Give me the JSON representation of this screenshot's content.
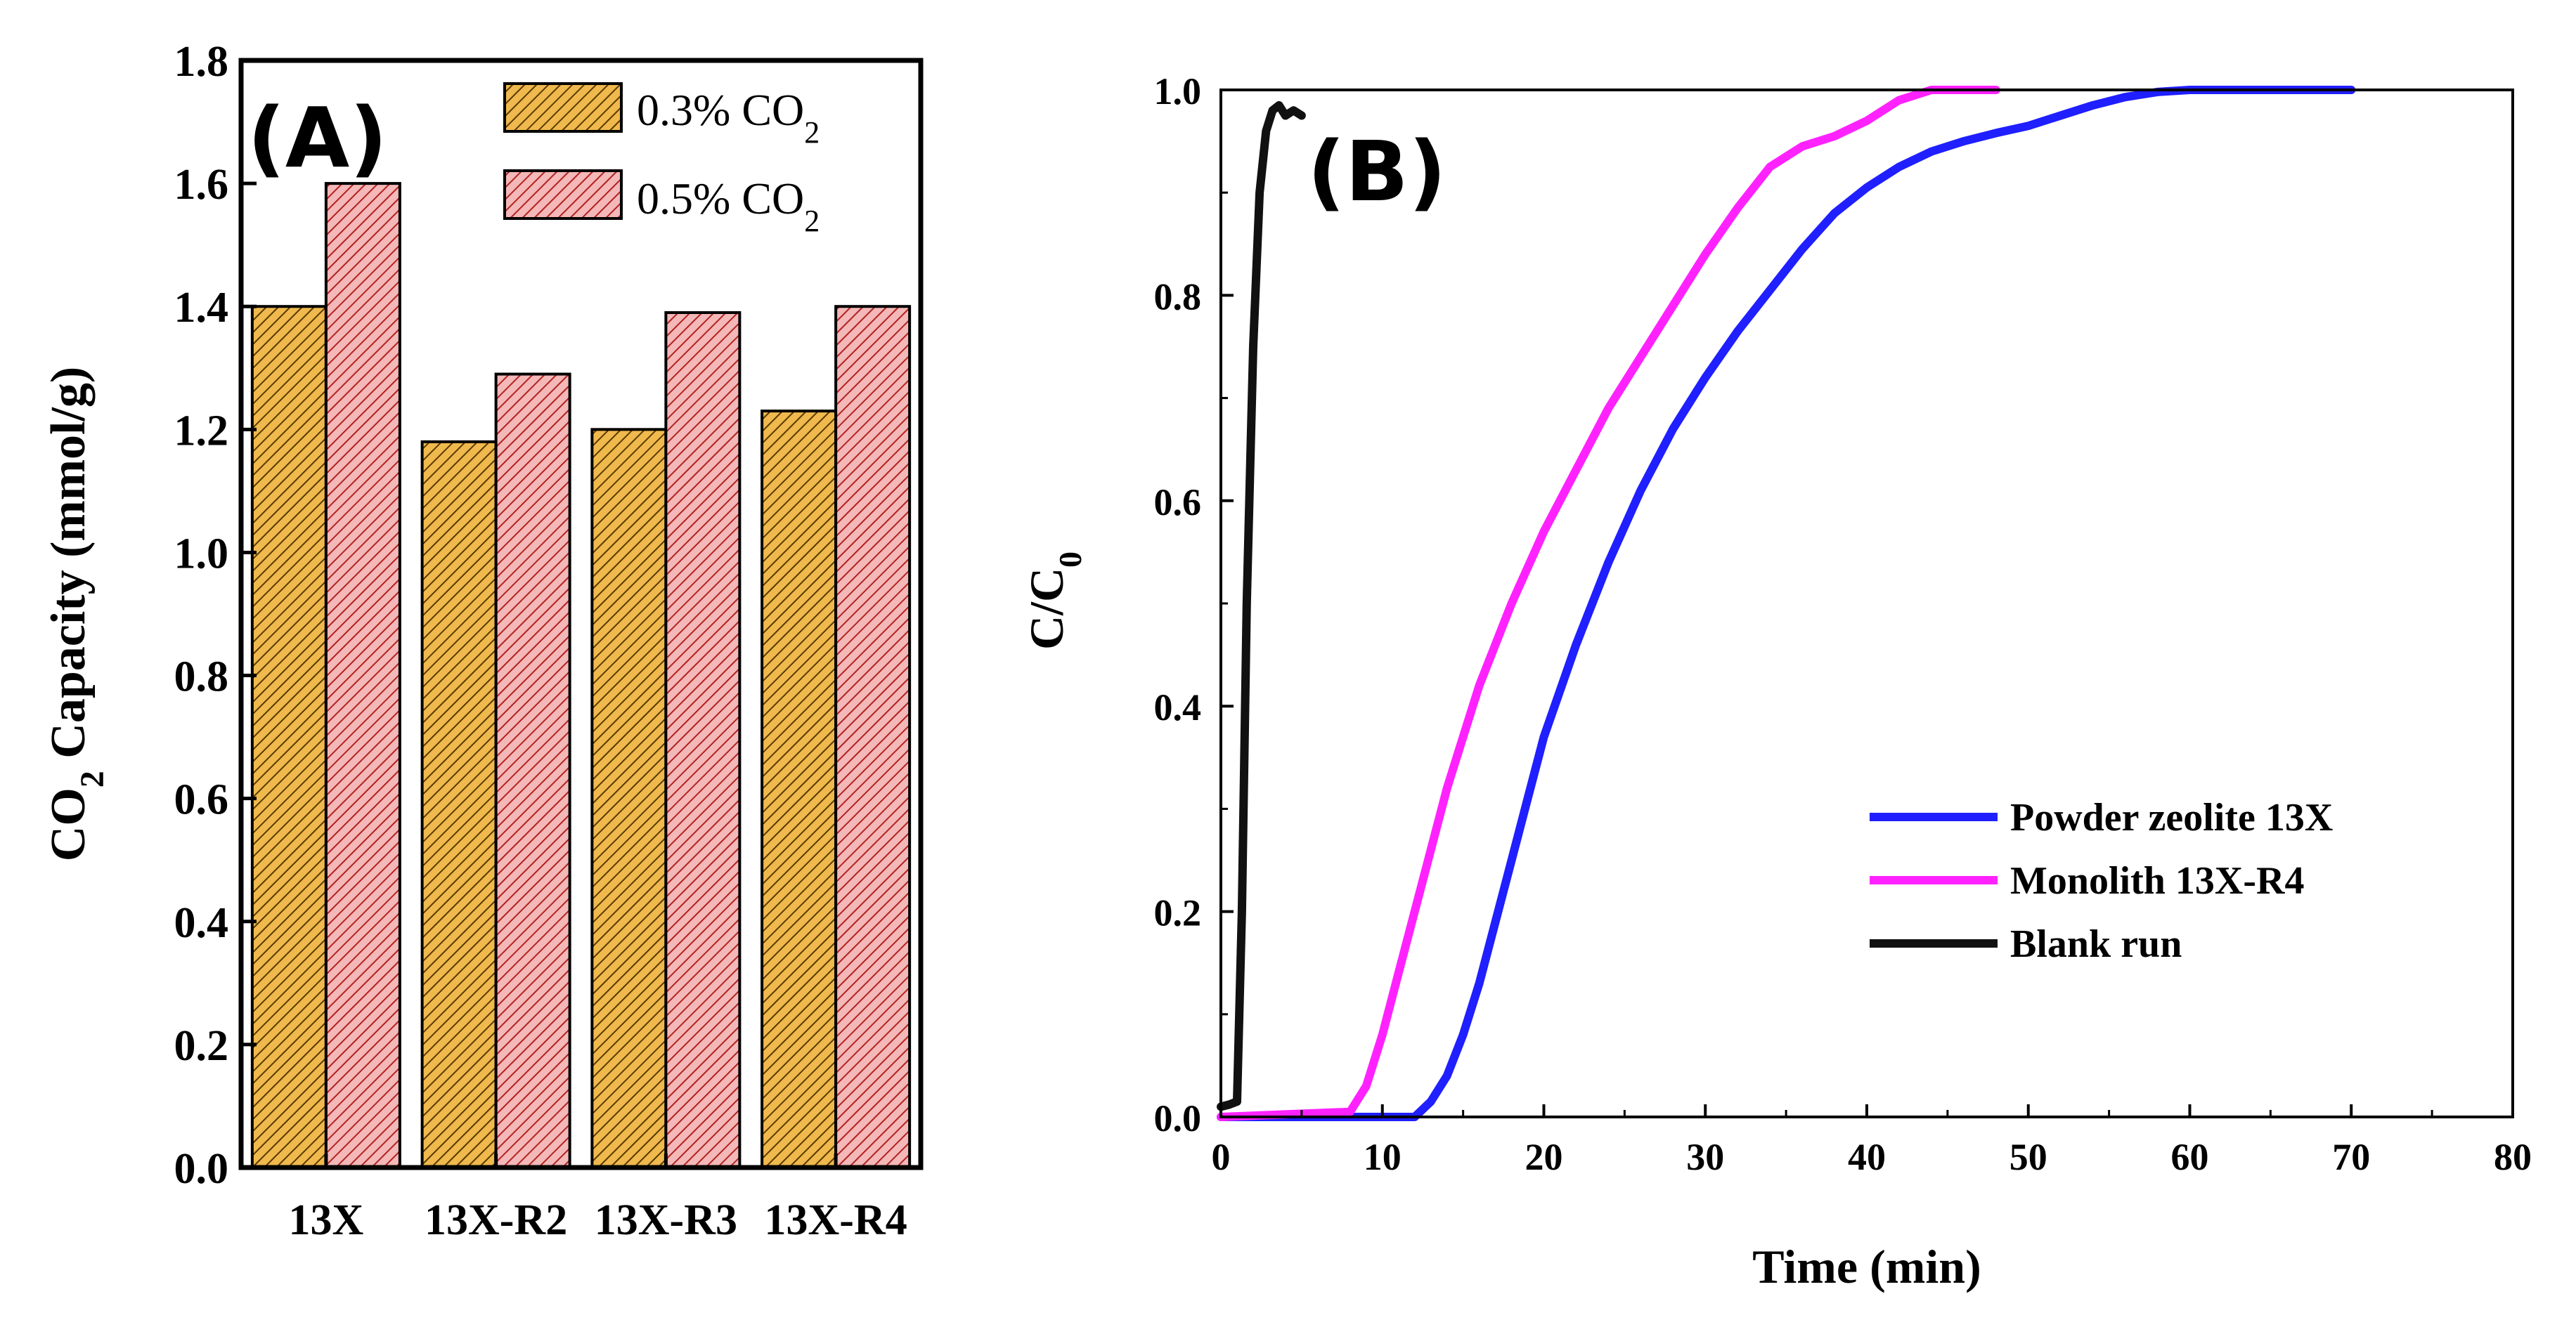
{
  "chart_data": [
    {
      "panel": "(A)",
      "type": "bar",
      "ylabel": "CO2 Capacity (mmol/g)",
      "ylabel_parts": {
        "pre": "CO",
        "sub": "2",
        "post": " Capacity (mmol/g)"
      },
      "xlabel": "",
      "ylim": [
        0.0,
        1.8
      ],
      "yticks": [
        "0.0",
        "0.2",
        "0.4",
        "0.6",
        "0.8",
        "1.0",
        "1.2",
        "1.4",
        "1.6",
        "1.8"
      ],
      "ytick_values": [
        0.0,
        0.2,
        0.4,
        0.6,
        0.8,
        1.0,
        1.2,
        1.4,
        1.6,
        1.8
      ],
      "categories": [
        "13X",
        "13X-R2",
        "13X-R3",
        "13X-R4"
      ],
      "series": [
        {
          "name": "0.3% CO2",
          "name_parts": {
            "pre": "0.3% CO",
            "sub": "2"
          },
          "color": "#f0b94d",
          "hatch": "#5a3a00",
          "values": [
            1.4,
            1.18,
            1.2,
            1.23
          ]
        },
        {
          "name": "0.5% CO2",
          "name_parts": {
            "pre": "0.5% CO",
            "sub": "2"
          },
          "color": "#f4b8b8",
          "hatch": "#b22222",
          "values": [
            1.6,
            1.29,
            1.39,
            1.4
          ]
        }
      ],
      "legend_position": "top-right"
    },
    {
      "panel": "(B)",
      "type": "line",
      "xlabel": "Time (min)",
      "ylabel": "C/C0",
      "ylabel_parts": {
        "pre": "C/C",
        "sub": "0"
      },
      "xlim": [
        0,
        80
      ],
      "ylim": [
        0.0,
        1.0
      ],
      "xticks": [
        "0",
        "10",
        "20",
        "30",
        "40",
        "50",
        "60",
        "70",
        "80"
      ],
      "xtick_values": [
        0,
        10,
        20,
        30,
        40,
        50,
        60,
        70,
        80
      ],
      "yticks": [
        "0.0",
        "0.2",
        "0.4",
        "0.6",
        "0.8",
        "1.0"
      ],
      "ytick_values": [
        0.0,
        0.2,
        0.4,
        0.6,
        0.8,
        1.0
      ],
      "series": [
        {
          "name": "Powder zeolite 13X",
          "color": "#1f1fff",
          "x": [
            0,
            12,
            13,
            14,
            15,
            16,
            17,
            18,
            19,
            20,
            22,
            24,
            26,
            28,
            30,
            32,
            34,
            36,
            38,
            40,
            42,
            44,
            46,
            48,
            50,
            52,
            54,
            56,
            58,
            60,
            62,
            65,
            70
          ],
          "y": [
            0,
            0,
            0.015,
            0.04,
            0.08,
            0.13,
            0.19,
            0.25,
            0.31,
            0.37,
            0.46,
            0.54,
            0.61,
            0.67,
            0.72,
            0.765,
            0.805,
            0.845,
            0.88,
            0.905,
            0.925,
            0.94,
            0.95,
            0.958,
            0.965,
            0.975,
            0.985,
            0.993,
            0.998,
            1.0,
            1.0,
            1.0,
            1.0
          ]
        },
        {
          "name": "Monolith 13X-R4",
          "color": "#ff22ff",
          "x": [
            0,
            8,
            9,
            10,
            11,
            12,
            13,
            14,
            15,
            16,
            18,
            20,
            22,
            24,
            26,
            28,
            30,
            32,
            34,
            36,
            38,
            40,
            42,
            44,
            46,
            48
          ],
          "y": [
            0,
            0.005,
            0.03,
            0.08,
            0.14,
            0.2,
            0.26,
            0.32,
            0.37,
            0.42,
            0.5,
            0.57,
            0.63,
            0.69,
            0.74,
            0.79,
            0.84,
            0.885,
            0.925,
            0.945,
            0.955,
            0.97,
            0.99,
            1.0,
            1.0,
            1.0
          ]
        },
        {
          "name": "Blank run",
          "color": "#111111",
          "x": [
            0,
            0.5,
            1.0,
            1.3,
            1.6,
            2.0,
            2.4,
            2.8,
            3.2,
            3.6,
            4.0,
            4.5,
            5.0
          ],
          "y": [
            0.01,
            0.012,
            0.015,
            0.2,
            0.5,
            0.75,
            0.9,
            0.96,
            0.98,
            0.985,
            0.975,
            0.98,
            0.975
          ]
        }
      ],
      "legend_position": "bottom-right"
    }
  ]
}
